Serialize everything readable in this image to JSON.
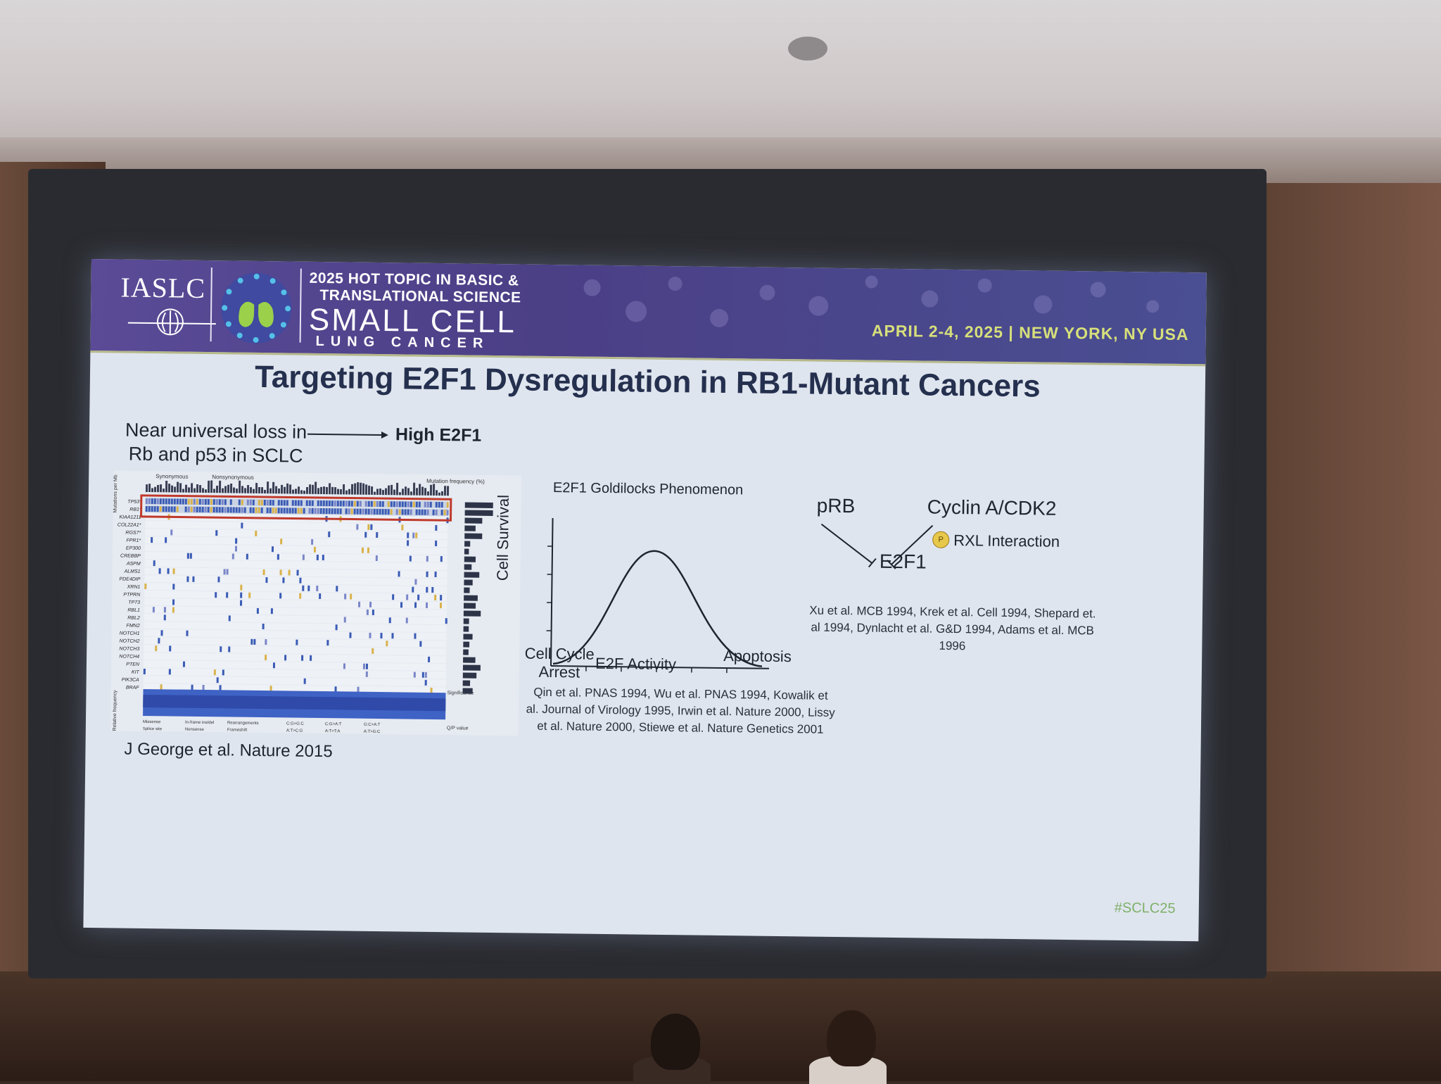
{
  "banner": {
    "org": "IASLC",
    "line1": "2025 HOT TOPIC IN BASIC &",
    "line2": "TRANSLATIONAL SCIENCE",
    "line3": "SMALL CELL",
    "line4": "LUNG CANCER",
    "date_location": "APRIL 2-4, 2025 | NEW YORK, NY USA"
  },
  "slide": {
    "title": "Targeting E2F1 Dysregulation in RB1-Mutant Cancers",
    "loss_label": "Near universal loss in Rb and p53 in SCLC",
    "high_label": "High E2F1",
    "george_citation": "J George et al. Nature 2015",
    "curve_title": "E2F1 Goldilocks Phenomenon",
    "y_label": "Cell Survival",
    "x_left": "Cell Cycle Arrest",
    "x_mid": "E2F Activity",
    "x_right": "Apoptosis",
    "qin_citation": "Qin et al. PNAS 1994, Wu et al. PNAS 1994, Kowalik et al. Journal of Virology 1995, Irwin et al. Nature 2000, Lissy et al. Nature 2000, Stiewe et al. Nature Genetics 2001",
    "prb": "pRB",
    "cyclin": "Cyclin A/CDK2",
    "rxl": "RXL Interaction",
    "e2f1": "E2F1",
    "phospho": "P",
    "xu_citation": "Xu et al. MCB 1994, Krek et al. Cell 1994, Shepard et. al 1994, Dynlacht et al. G&D 1994, Adams et al. MCB 1996",
    "hashtag": "#SCLC25"
  },
  "oncoprint": {
    "legend_syn": "Synonymous",
    "legend_nonsyn": "Nonsynonymous",
    "mut_freq_label": "Mutation frequency (%)",
    "genes": [
      "TP53*",
      "RB1*",
      "KIAA1211",
      "COL22A1*",
      "RGS7*",
      "FPR1*",
      "EP300",
      "CREBBP",
      "ASPM",
      "ALMS1",
      "PDE4DIP",
      "XRN1",
      "PTPRN",
      "TP73",
      "RBL1",
      "RBL2",
      "FMN2",
      "NOTCH1",
      "NOTCH2",
      "NOTCH3",
      "NOTCH4",
      "PTEN",
      "KIT",
      "PIK3CA",
      "BRAF"
    ],
    "bottom_legend": [
      "Missense",
      "In-frame ins/del",
      "Rearrangements",
      "Splice site",
      "Nonsense",
      "Frameshift",
      "C:G>G:C",
      "C:G>A:T",
      "G:C>A:T",
      "A:T>C:G",
      "A:T>T:A",
      "A:T>G:C"
    ],
    "y_label_top": "Mutations per Mb",
    "y_label_bottom": "Relative frequency",
    "significance": "Significance",
    "qvalue": "Q/P value"
  },
  "colors": {
    "banner": "#5b4b97",
    "date": "#d7e07a",
    "title": "#25304f",
    "hashtag": "#7eb06a",
    "highlight_box": "#c0392b"
  }
}
